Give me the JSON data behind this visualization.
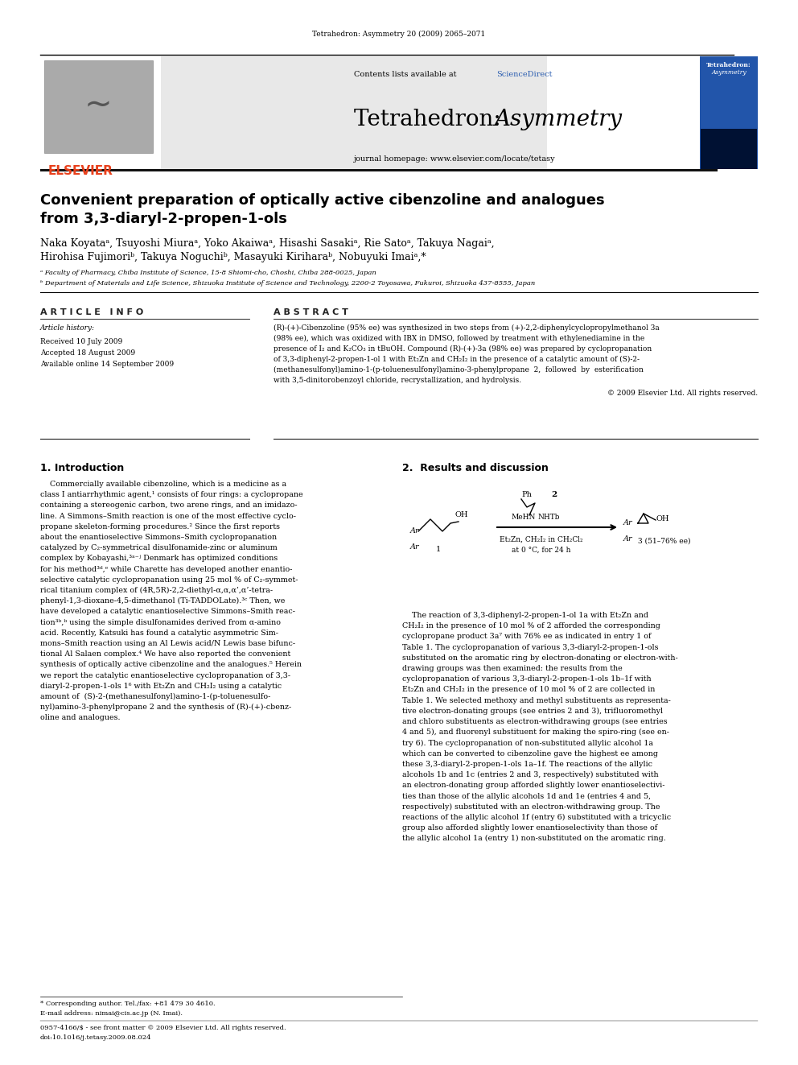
{
  "background_color": "#ffffff",
  "page_width": 9.92,
  "page_height": 13.23,
  "journal_citation": "Tetrahedron: Asymmetry 20 (2009) 2065–2071",
  "contents_line": "Contents lists available at ",
  "sciencedirect_text": "ScienceDirect",
  "sciencedirect_color": "#2a5db0",
  "journal_title_normal": "Tetrahedron: ",
  "journal_title_italic": "Asymmetry",
  "journal_homepage": "journal homepage: www.elsevier.com/locate/tetasy",
  "paper_title_line1": "Convenient preparation of optically active cibenzoline and analogues",
  "paper_title_line2": "from 3,3-diaryl-2-propen-1-ols",
  "author_line1": "Naka Koyataᵃ, Tsuyoshi Miuraᵃ, Yoko Akaiwaᵃ, Hisashi Sasakiᵃ, Rie Satoᵃ, Takuya Nagaiᵃ,",
  "author_line2": "Hirohisa Fujimoriᵇ, Takuya Noguchiᵇ, Masayuki Kiriharaᵇ, Nobuyuki Imaiᵃ,*",
  "affil_a": "ᵃ Faculty of Pharmacy, Chiba Institute of Science, 15-8 Shiomi-cho, Choshi, Chiba 288-0025, Japan",
  "affil_b": "ᵇ Department of Materials and Life Science, Shizuoka Institute of Science and Technology, 2200-2 Toyosawa, Fukuroi, Shizuoka 437-8555, Japan",
  "article_info_header": "A R T I C L E   I N F O",
  "article_history_label": "Article history:",
  "received": "Received 10 July 2009",
  "accepted": "Accepted 18 August 2009",
  "available": "Available online 14 September 2009",
  "abstract_header": "A B S T R A C T",
  "abstract_text_lines": [
    "(R)-(+)-Cibenzoline (95% ee) was synthesized in two steps from (+)-2,2-diphenylcyclopropylmethanol 3a",
    "(98% ee), which was oxidized with IBX in DMSO, followed by treatment with ethylenediamine in the",
    "presence of I₂ and K₂CO₃ in tBuOH. Compound (R)-(+)-3a (98% ee) was prepared by cyclopropanation",
    "of 3,3-diphenyl-2-propen-1-ol 1 with Et₂Zn and CH₂I₂ in the presence of a catalytic amount of (S)-2-",
    "(methanesulfonyl)amino-1-(p-toluenesulfonyl)amino-3-phenylpropane  2,  followed  by  esterification",
    "with 3,5-dinitorobenzoyl chloride, recrystallization, and hydrolysis."
  ],
  "copyright": "© 2009 Elsevier Ltd. All rights reserved.",
  "intro_header": "1. Introduction",
  "results_header": "2.  Results and discussion",
  "intro_text_lines": [
    "    Commercially available cibenzoline, which is a medicine as a",
    "class I antiarrhythmic agent,¹ consists of four rings: a cyclopropane",
    "containing a stereogenic carbon, two arene rings, and an imidazo-",
    "line. A Simmons–Smith reaction is one of the most effective cyclo-",
    "propane skeleton-forming procedures.² Since the first reports",
    "about the enantioselective Simmons–Smith cyclopropanation",
    "catalyzed by C₂-symmetrical disulfonamide-zinc or aluminum",
    "complex by Kobayashi,³ᵃ⁻ʲ Denmark has optimized conditions",
    "for his method³ᵈ,ᵉ while Charette has developed another enantio-",
    "selective catalytic cyclopropanation using 25 mol % of C₂-symmet-",
    "rical titanium complex of (4R,5R)-2,2-diethyl-α,α,α’,α’-tetra-",
    "phenyl-1,3-dioxane-4,5-dimethanol (Ti-TADDOLate).³ᶜ Then, we",
    "have developed a catalytic enantioselective Simmons–Smith reac-",
    "tion³ᵇ,ᵇ using the simple disulfonamides derived from α-amino",
    "acid. Recently, Katsuki has found a catalytic asymmetric Sim-",
    "mons–Smith reaction using an Al Lewis acid/N Lewis base bifunc-",
    "tional Al Salaen complex.⁴ We have also reported the convenient",
    "synthesis of optically active cibenzoline and the analogues.⁵ Herein",
    "we report the catalytic enantioselective cyclopropanation of 3,3-",
    "diaryl-2-propen-1-ols 1⁶ with Et₂Zn and CH₂I₂ using a catalytic",
    "amount of  (S)-2-(methanesulfonyl)amino-1-(p-toluenesulfo-",
    "nyl)amino-3-phenylpropane 2 and the synthesis of (R)-(+)-cbenz-",
    "oline and analogues."
  ],
  "results_text_lines": [
    "    The reaction of 3,3-diphenyl-2-propen-1-ol 1a with Et₂Zn and",
    "CH₂I₂ in the presence of 10 mol % of 2 afforded the corresponding",
    "cyclopropane product 3a⁷ with 76% ee as indicated in entry 1 of",
    "Table 1. The cyclopropanation of various 3,3-diaryl-2-propen-1-ols",
    "substituted on the aromatic ring by electron-donating or electron-with-",
    "drawing groups was then examined: the results from the",
    "cyclopropanation of various 3,3-diaryl-2-propen-1-ols 1b–1f with",
    "Et₂Zn and CH₂I₂ in the presence of 10 mol % of 2 are collected in",
    "Table 1. We selected methoxy and methyl substituents as representa-",
    "tive electron-donating groups (see entries 2 and 3), trifluoromethyl",
    "and chloro substituents as electron-withdrawing groups (see entries",
    "4 and 5), and fluorenyl substituent for making the spiro-ring (see en-",
    "try 6). The cyclopropanation of non-substituted allylic alcohol 1a",
    "which can be converted to cibenzoline gave the highest ee among",
    "these 3,3-diaryl-2-propen-1-ols 1a–1f. The reactions of the allylic",
    "alcohols 1b and 1c (entries 2 and 3, respectively) substituted with",
    "an electron-donating group afforded slightly lower enantioselectivi-",
    "ties than those of the allylic alcohols 1d and 1e (entries 4 and 5,",
    "respectively) substituted with an electron-withdrawing group. The",
    "reactions of the allylic alcohol 1f (entry 6) substituted with a tricyclic",
    "group also afforded slightly lower enantioselectivity than those of",
    "the allylic alcohol 1a (entry 1) non-substituted on the aromatic ring."
  ],
  "footnote1": "* Corresponding author. Tel./fax: +81 479 30 4610.",
  "footnote2": "E-mail address: nimai@cis.ac.jp (N. Imai).",
  "issn_line": "0957-4166/$ - see front matter © 2009 Elsevier Ltd. All rights reserved.",
  "doi_line": "doi:10.1016/j.tetasy.2009.08.024",
  "elsevier_color": "#e8401c",
  "header_bg_color": "#e8e8e8",
  "thick_bar_color": "#111111",
  "cover_bg_color": "#2255aa",
  "cover_bottom_color": "#001133"
}
